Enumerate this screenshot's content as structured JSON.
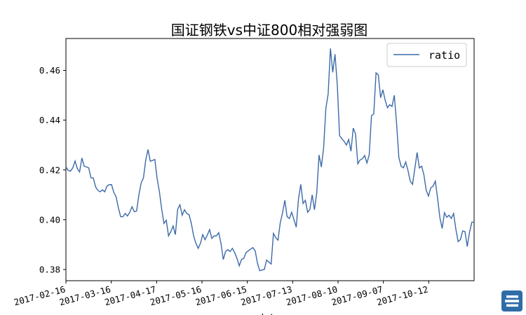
{
  "chart_data": {
    "type": "line",
    "title": "国证钢铁vs中证800相对强弱图",
    "xlabel": "date",
    "ylabel": "",
    "x_ticks": [
      "2017-02-16",
      "2017-03-16",
      "2017-04-17",
      "2017-05-16",
      "2017-06-15",
      "2017-07-13",
      "2017-08-10",
      "2017-09-07",
      "2017-10-12"
    ],
    "y_ticks": [
      "0.38",
      "0.40",
      "0.42",
      "0.44",
      "0.46"
    ],
    "ylim": [
      0.3755,
      0.4728
    ],
    "legend": {
      "position": "top-right"
    },
    "grid": false,
    "series": [
      {
        "name": "ratio",
        "color": "#3c6aa8",
        "values": [
          0.4213,
          0.4198,
          0.4195,
          0.4208,
          0.4236,
          0.4205,
          0.4192,
          0.4248,
          0.4215,
          0.4212,
          0.4208,
          0.4168,
          0.4168,
          0.4132,
          0.4118,
          0.4112,
          0.412,
          0.4112,
          0.4135,
          0.4141,
          0.4141,
          0.411,
          0.4092,
          0.4048,
          0.4012,
          0.4012,
          0.4025,
          0.4015,
          0.403,
          0.4052,
          0.4032,
          0.4035,
          0.41,
          0.4148,
          0.4168,
          0.424,
          0.4282,
          0.4235,
          0.4238,
          0.4242,
          0.4165,
          0.4112,
          0.4042,
          0.3985,
          0.3998,
          0.3935,
          0.3952,
          0.3975,
          0.394,
          0.4042,
          0.406,
          0.4018,
          0.404,
          0.4025,
          0.402,
          0.3985,
          0.3935,
          0.3905,
          0.3885,
          0.3905,
          0.394,
          0.392,
          0.3938,
          0.396,
          0.3925,
          0.3935,
          0.3935,
          0.3948,
          0.3905,
          0.384,
          0.3872,
          0.388,
          0.3872,
          0.3885,
          0.3868,
          0.3845,
          0.3815,
          0.384,
          0.3845,
          0.3868,
          0.3875,
          0.3882,
          0.3888,
          0.3875,
          0.3825,
          0.3795,
          0.3798,
          0.38,
          0.3838,
          0.383,
          0.3822,
          0.3945,
          0.3928,
          0.3918,
          0.3988,
          0.4028,
          0.4078,
          0.4012,
          0.4005,
          0.403,
          0.4,
          0.397,
          0.4085,
          0.4142,
          0.4065,
          0.4078,
          0.403,
          0.4042,
          0.41,
          0.404,
          0.4108,
          0.426,
          0.4212,
          0.4288,
          0.4448,
          0.4505,
          0.4688,
          0.4592,
          0.4665,
          0.4542,
          0.4338,
          0.4325,
          0.4315,
          0.43,
          0.4322,
          0.4275,
          0.4368,
          0.4345,
          0.4225,
          0.424,
          0.4245,
          0.4258,
          0.4228,
          0.426,
          0.4418,
          0.4425,
          0.459,
          0.4582,
          0.449,
          0.4522,
          0.448,
          0.445,
          0.4462,
          0.4455,
          0.45,
          0.4388,
          0.425,
          0.4215,
          0.4208,
          0.4232,
          0.4198,
          0.4155,
          0.4142,
          0.4205,
          0.427,
          0.4208,
          0.4215,
          0.418,
          0.4118,
          0.4095,
          0.4128,
          0.4135,
          0.4155,
          0.4085,
          0.4008,
          0.3965,
          0.4028,
          0.401,
          0.4018,
          0.4005,
          0.4025,
          0.3962,
          0.3912,
          0.392,
          0.3955,
          0.3952,
          0.3892,
          0.395,
          0.399,
          0.399
        ]
      }
    ]
  },
  "watermark": {
    "icon": "logo-icon",
    "color": "#2e6da8"
  }
}
